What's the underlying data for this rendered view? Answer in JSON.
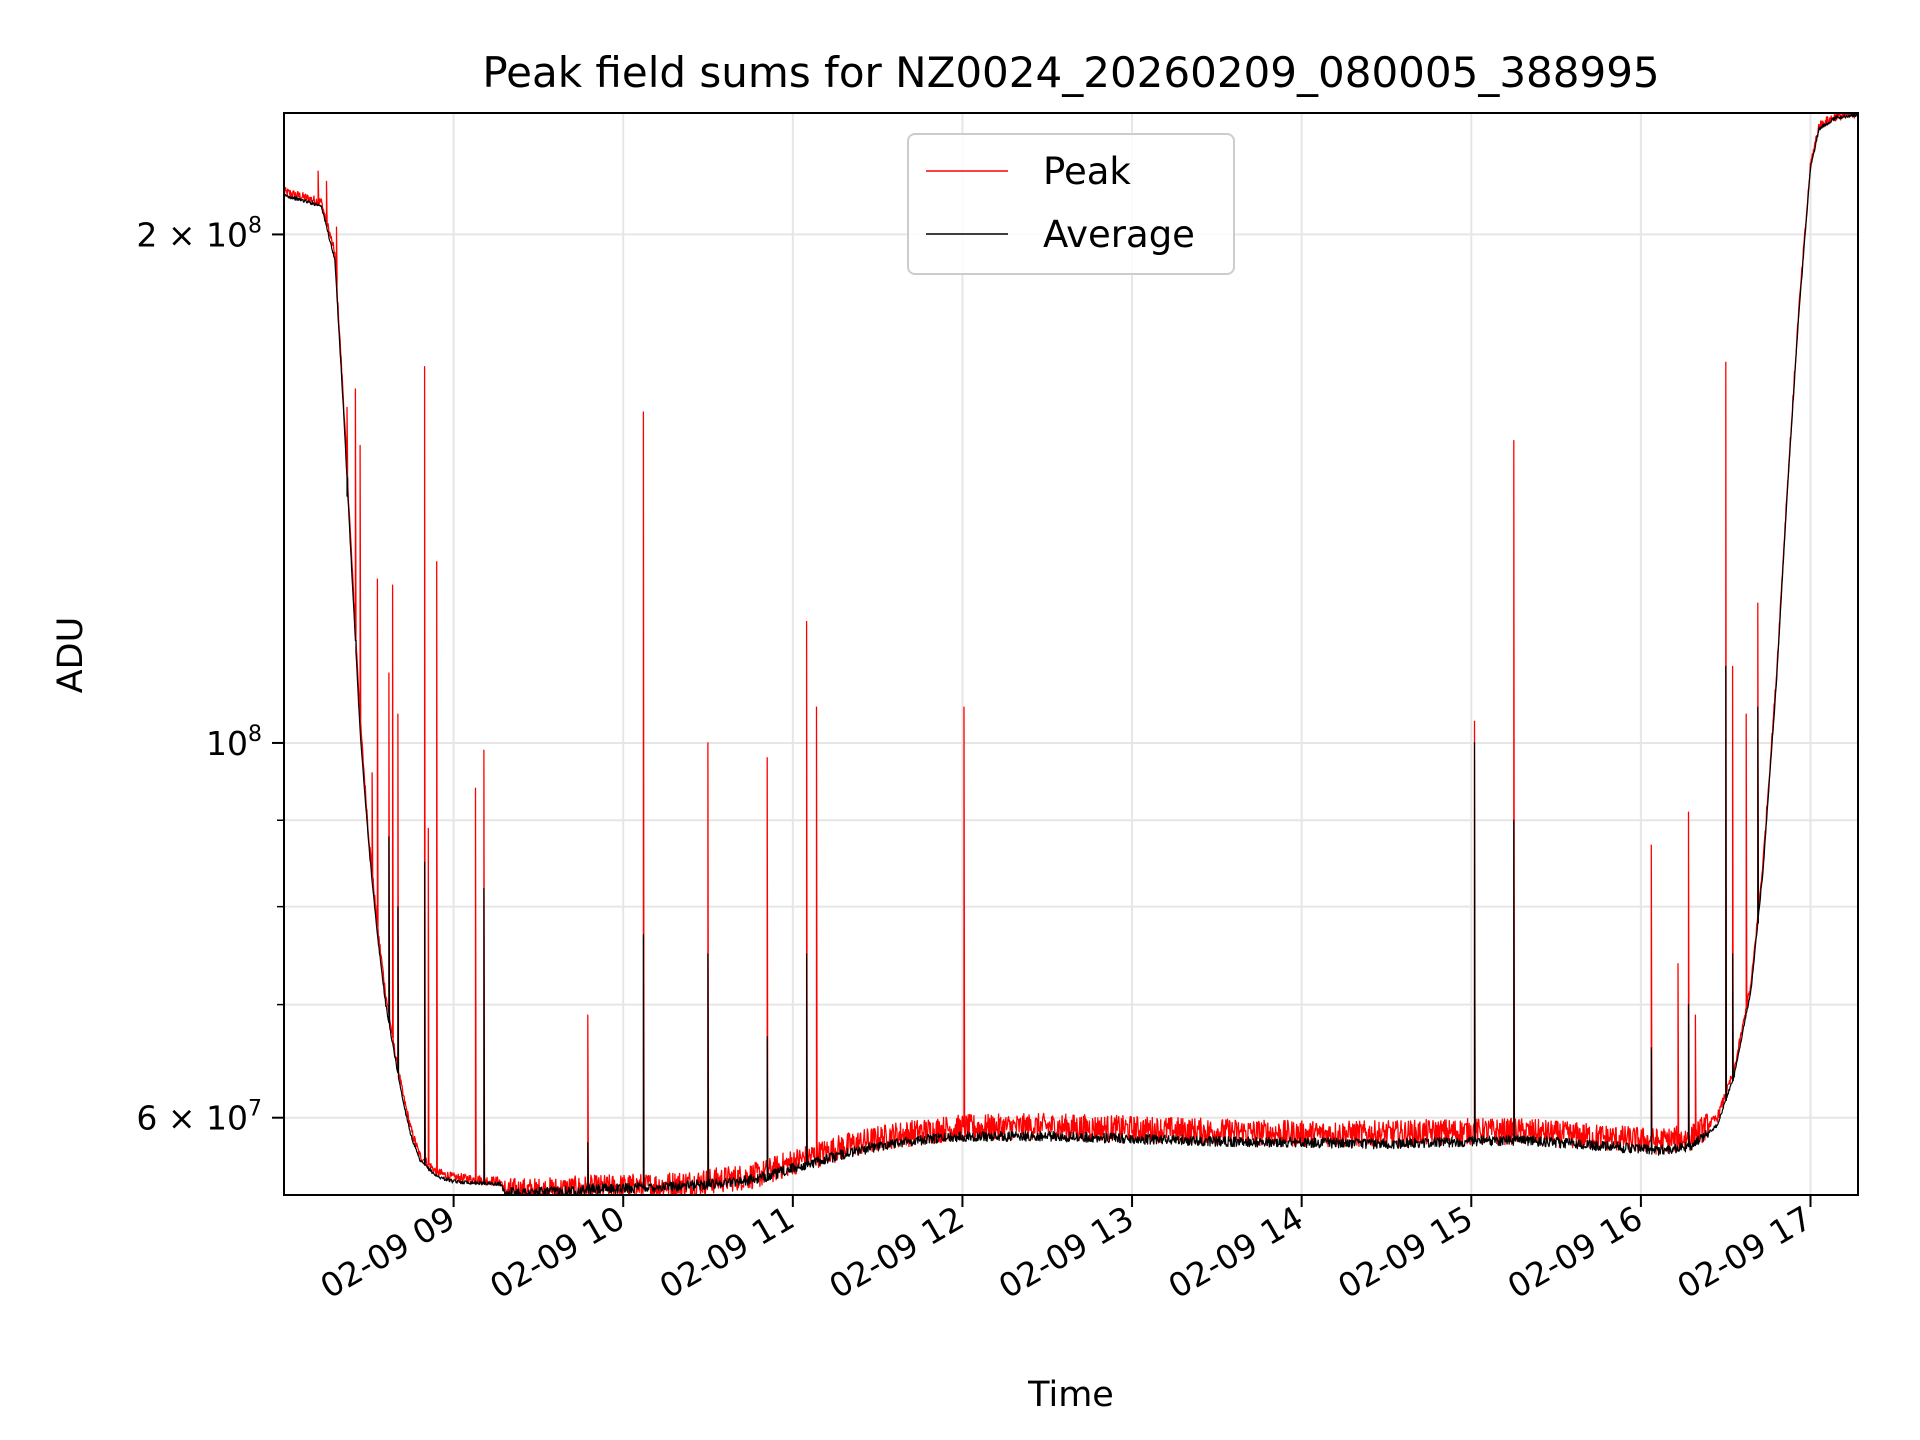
{
  "chart_data": {
    "type": "line",
    "title": "Peak field sums for NZ0024_20260209_080005_388995",
    "xlabel": "Time",
    "ylabel": "ADU",
    "yscale": "log",
    "xlim_hours": [
      8.0,
      17.28
    ],
    "ylim": [
      54000000,
      236000000
    ],
    "grid": true,
    "legend_position": "upper center",
    "x_tick_labels": [
      "02-09 09",
      "02-09 10",
      "02-09 11",
      "02-09 12",
      "02-09 13",
      "02-09 14",
      "02-09 15",
      "02-09 16",
      "02-09 17"
    ],
    "x_tick_hours": [
      9,
      10,
      11,
      12,
      13,
      14,
      15,
      16,
      17
    ],
    "y_tick_labels": [
      {
        "base": "2",
        "sup": "8",
        "mult": true,
        "value": 200000000
      },
      {
        "base": "10",
        "sup": "8",
        "mult": false,
        "value": 100000000
      },
      {
        "base": "6",
        "sup": "7",
        "mult": true,
        "value": 60000000
      }
    ],
    "y_minor_ticks": [
      70000000,
      80000000,
      90000000
    ],
    "series": [
      {
        "name": "Peak",
        "color": "#ff0000",
        "baseline": [
          [
            8.0,
            212000000
          ],
          [
            8.22,
            209000000
          ],
          [
            8.3,
            195000000
          ],
          [
            8.35,
            160000000
          ],
          [
            8.4,
            128000000
          ],
          [
            8.45,
            103000000
          ],
          [
            8.5,
            88000000
          ],
          [
            8.55,
            78000000
          ],
          [
            8.6,
            71000000
          ],
          [
            8.65,
            66000000
          ],
          [
            8.7,
            62000000
          ],
          [
            8.75,
            59000000
          ],
          [
            8.8,
            57000000
          ],
          [
            8.9,
            55700000
          ],
          [
            9.0,
            55300000
          ],
          [
            9.28,
            55000000
          ],
          [
            9.3,
            54300000
          ],
          [
            9.5,
            54300000
          ],
          [
            9.8,
            54500000
          ],
          [
            10.2,
            54700000
          ],
          [
            10.5,
            55000000
          ],
          [
            10.8,
            55500000
          ],
          [
            11.0,
            56500000
          ],
          [
            11.3,
            57700000
          ],
          [
            11.6,
            58600000
          ],
          [
            11.9,
            59100000
          ],
          [
            12.0,
            59200000
          ],
          [
            12.5,
            59300000
          ],
          [
            13.0,
            59100000
          ],
          [
            13.5,
            58900000
          ],
          [
            14.0,
            58700000
          ],
          [
            14.5,
            58700000
          ],
          [
            15.0,
            58900000
          ],
          [
            15.3,
            58900000
          ],
          [
            15.6,
            58600000
          ],
          [
            15.9,
            58300000
          ],
          [
            16.1,
            58100000
          ],
          [
            16.3,
            58400000
          ],
          [
            16.45,
            60000000
          ],
          [
            16.55,
            64000000
          ],
          [
            16.65,
            72000000
          ],
          [
            16.72,
            85000000
          ],
          [
            16.8,
            110000000
          ],
          [
            16.86,
            140000000
          ],
          [
            16.93,
            180000000
          ],
          [
            17.0,
            220000000
          ],
          [
            17.05,
            232000000
          ],
          [
            17.15,
            235000000
          ],
          [
            17.28,
            236000000
          ]
        ],
        "spikes": [
          [
            8.2,
            218000000
          ],
          [
            8.25,
            215000000
          ],
          [
            8.31,
            202000000
          ],
          [
            8.37,
            158000000
          ],
          [
            8.42,
            162000000
          ],
          [
            8.45,
            150000000
          ],
          [
            8.52,
            96000000
          ],
          [
            8.55,
            125000000
          ],
          [
            8.62,
            110000000
          ],
          [
            8.64,
            124000000
          ],
          [
            8.67,
            104000000
          ],
          [
            8.83,
            167000000
          ],
          [
            8.85,
            89000000
          ],
          [
            8.9,
            128000000
          ],
          [
            9.13,
            94000000
          ],
          [
            9.18,
            99000000
          ],
          [
            9.79,
            69000000
          ],
          [
            10.12,
            157000000
          ],
          [
            10.5,
            100000000
          ],
          [
            10.85,
            98000000
          ],
          [
            11.08,
            118000000
          ],
          [
            11.14,
            105000000
          ],
          [
            12.01,
            105000000
          ],
          [
            15.02,
            103000000
          ],
          [
            15.25,
            151000000
          ],
          [
            16.06,
            87000000
          ],
          [
            16.22,
            74000000
          ],
          [
            16.28,
            91000000
          ],
          [
            16.32,
            69000000
          ],
          [
            16.5,
            168000000
          ],
          [
            16.54,
            111000000
          ],
          [
            16.62,
            104000000
          ],
          [
            16.69,
            121000000
          ]
        ],
        "noise_amplitude": 0.018
      },
      {
        "name": "Average",
        "color": "#000000",
        "baseline": [
          [
            8.0,
            211000000
          ],
          [
            8.22,
            208000000
          ],
          [
            8.3,
            193000000
          ],
          [
            8.35,
            158000000
          ],
          [
            8.4,
            126000000
          ],
          [
            8.45,
            101000000
          ],
          [
            8.5,
            87000000
          ],
          [
            8.55,
            77000000
          ],
          [
            8.6,
            70000000
          ],
          [
            8.65,
            65500000
          ],
          [
            8.7,
            61500000
          ],
          [
            8.75,
            58500000
          ],
          [
            8.8,
            56600000
          ],
          [
            8.9,
            55400000
          ],
          [
            9.0,
            55000000
          ],
          [
            9.28,
            54800000
          ],
          [
            9.3,
            54200000
          ],
          [
            9.5,
            54200000
          ],
          [
            9.8,
            54400000
          ],
          [
            10.2,
            54600000
          ],
          [
            10.5,
            54800000
          ],
          [
            10.8,
            55200000
          ],
          [
            11.0,
            56000000
          ],
          [
            11.3,
            57100000
          ],
          [
            11.6,
            58000000
          ],
          [
            11.9,
            58400000
          ],
          [
            12.0,
            58500000
          ],
          [
            12.5,
            58500000
          ],
          [
            13.0,
            58300000
          ],
          [
            13.5,
            58100000
          ],
          [
            14.0,
            58000000
          ],
          [
            14.5,
            57900000
          ],
          [
            15.0,
            58100000
          ],
          [
            15.3,
            58200000
          ],
          [
            15.6,
            57900000
          ],
          [
            15.9,
            57600000
          ],
          [
            16.1,
            57400000
          ],
          [
            16.3,
            57700000
          ],
          [
            16.45,
            59400000
          ],
          [
            16.55,
            63500000
          ],
          [
            16.65,
            71500000
          ],
          [
            16.72,
            84000000
          ],
          [
            16.8,
            109000000
          ],
          [
            16.86,
            139000000
          ],
          [
            16.93,
            179000000
          ],
          [
            17.0,
            219000000
          ],
          [
            17.05,
            231000000
          ],
          [
            17.15,
            234500000
          ],
          [
            17.28,
            235500000
          ]
        ],
        "spikes": [
          [
            8.37,
            140000000
          ],
          [
            8.42,
            115000000
          ],
          [
            8.62,
            88000000
          ],
          [
            8.67,
            80000000
          ],
          [
            8.83,
            85000000
          ],
          [
            9.18,
            82000000
          ],
          [
            9.79,
            58000000
          ],
          [
            10.12,
            77000000
          ],
          [
            10.5,
            75000000
          ],
          [
            10.85,
            67000000
          ],
          [
            11.08,
            75000000
          ],
          [
            15.02,
            100000000
          ],
          [
            15.25,
            90000000
          ],
          [
            16.06,
            66000000
          ],
          [
            16.28,
            70000000
          ],
          [
            16.5,
            111000000
          ],
          [
            16.54,
            75000000
          ],
          [
            16.69,
            105000000
          ]
        ],
        "noise_amplitude": 0.007
      }
    ]
  }
}
